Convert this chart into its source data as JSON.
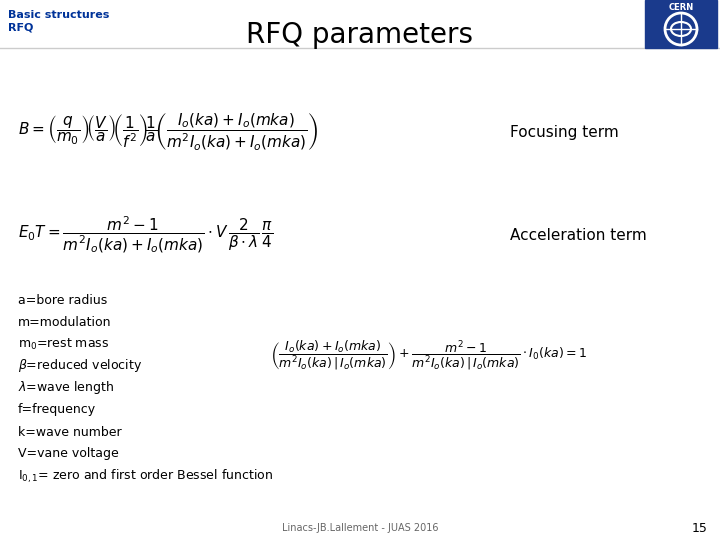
{
  "title": "RFQ parameters",
  "subtitle_line1": "Basic structures",
  "subtitle_line2": "RFQ",
  "focusing_label": "Focusing term",
  "acceleration_label": "Acceleration term",
  "bullet_points": [
    "a=bore radius",
    "m=modulation",
    "m$_0$=rest mass",
    "$\\beta$=reduced velocity",
    "$\\lambda$=wave length",
    "f=frequency",
    "k=wave number",
    "V=vane voltage",
    "I$_{0,1}$= zero and first order Bessel function"
  ],
  "footer_text": "Linacs-JB.Lallement - JUAS 2016",
  "page_number": "15",
  "bg_color": "#ffffff",
  "title_color": "#000000",
  "subtitle_color": "#003399",
  "text_color": "#000000",
  "header_line_color": "#cccccc",
  "title_fontsize": 20,
  "subtitle_fontsize": 8,
  "label_fontsize": 11,
  "bullet_fontsize": 9,
  "formula1_fontsize": 11,
  "formula2_fontsize": 11,
  "formula3_fontsize": 9,
  "footer_fontsize": 7
}
